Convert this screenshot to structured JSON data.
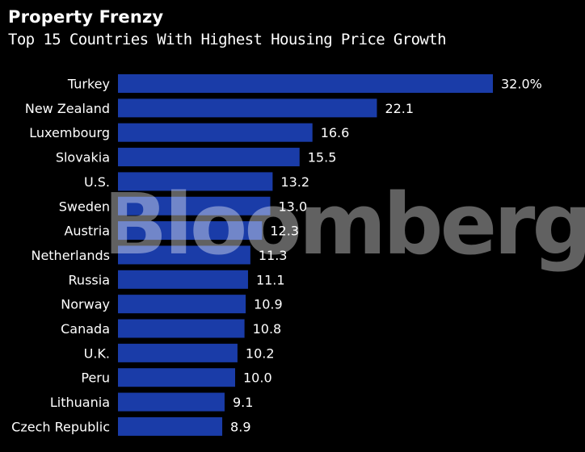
{
  "chart_data": {
    "type": "bar",
    "orientation": "horizontal",
    "title": "Property Frenzy",
    "subtitle": "Top 15 Countries With Highest Housing Price Growth",
    "categories": [
      "Turkey",
      "New Zealand",
      "Luxembourg",
      "Slovakia",
      "U.S.",
      "Sweden",
      "Austria",
      "Netherlands",
      "Russia",
      "Norway",
      "Canada",
      "U.K.",
      "Peru",
      "Lithuania",
      "Czech Republic"
    ],
    "values": [
      32.0,
      22.1,
      16.6,
      15.5,
      13.2,
      13.0,
      12.3,
      11.3,
      11.1,
      10.9,
      10.8,
      10.2,
      10.0,
      9.1,
      8.9
    ],
    "value_labels": [
      "32.0%",
      "22.1",
      "16.6",
      "15.5",
      "13.2",
      "13.0",
      "12.3",
      "11.3",
      "11.1",
      "10.9",
      "10.8",
      "10.2",
      "10.0",
      "9.1",
      "8.9"
    ],
    "xlim": [
      0,
      32.0
    ],
    "grid": false,
    "bar_color": "#1a3ca8",
    "background": "#000000"
  },
  "watermark": "Bloomberg"
}
